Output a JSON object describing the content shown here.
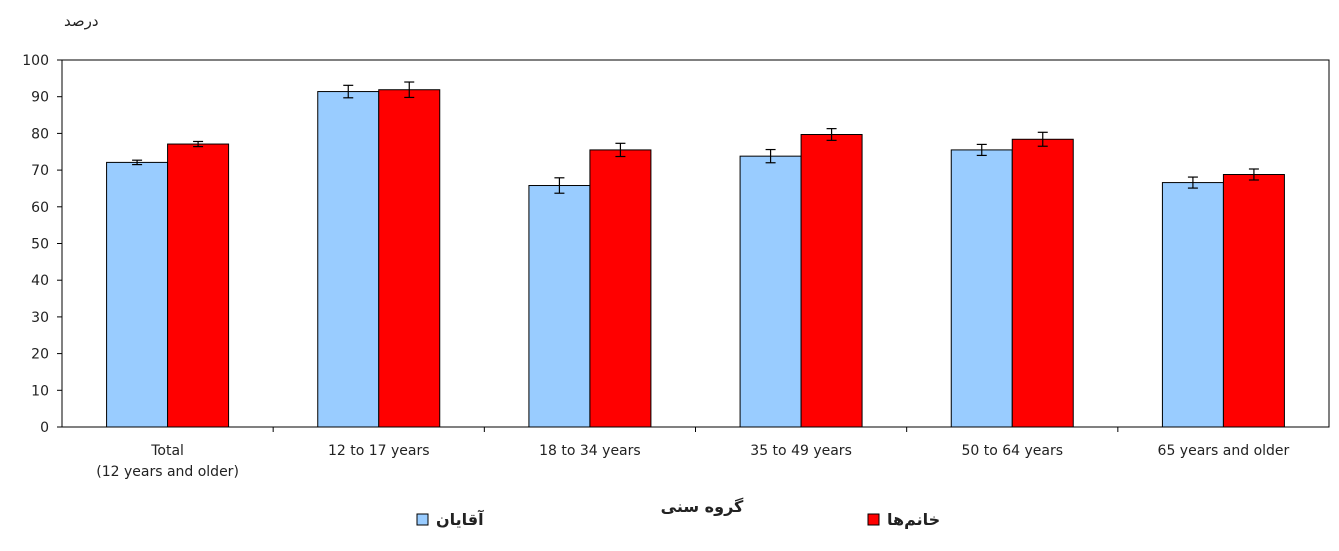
{
  "chart_data": {
    "type": "bar",
    "ylabel": "درصد",
    "xlabel": "گروه سنی",
    "ylim": [
      0,
      100
    ],
    "yticks": [
      0,
      10,
      20,
      30,
      40,
      50,
      60,
      70,
      80,
      90,
      100
    ],
    "categories": [
      [
        "Total",
        "(12 years and older)"
      ],
      [
        "12 to 17 years"
      ],
      [
        "18 to 34 years"
      ],
      [
        "35 to 49 years"
      ],
      [
        "50 to 64 years"
      ],
      [
        "65 years and older"
      ]
    ],
    "series": [
      {
        "name": "آقایان",
        "color": "#99ccff",
        "values": [
          72.1,
          91.4,
          65.8,
          73.8,
          75.5,
          66.6
        ],
        "err": [
          0.6,
          1.7,
          2.1,
          1.8,
          1.5,
          1.5
        ]
      },
      {
        "name": "خانم‌ها",
        "color": "#ff0000",
        "values": [
          77.1,
          91.9,
          75.5,
          79.7,
          78.4,
          68.8
        ],
        "err": [
          0.7,
          2.1,
          1.8,
          1.6,
          1.9,
          1.5
        ]
      }
    ],
    "grid": false,
    "legend_position": "bottom"
  }
}
